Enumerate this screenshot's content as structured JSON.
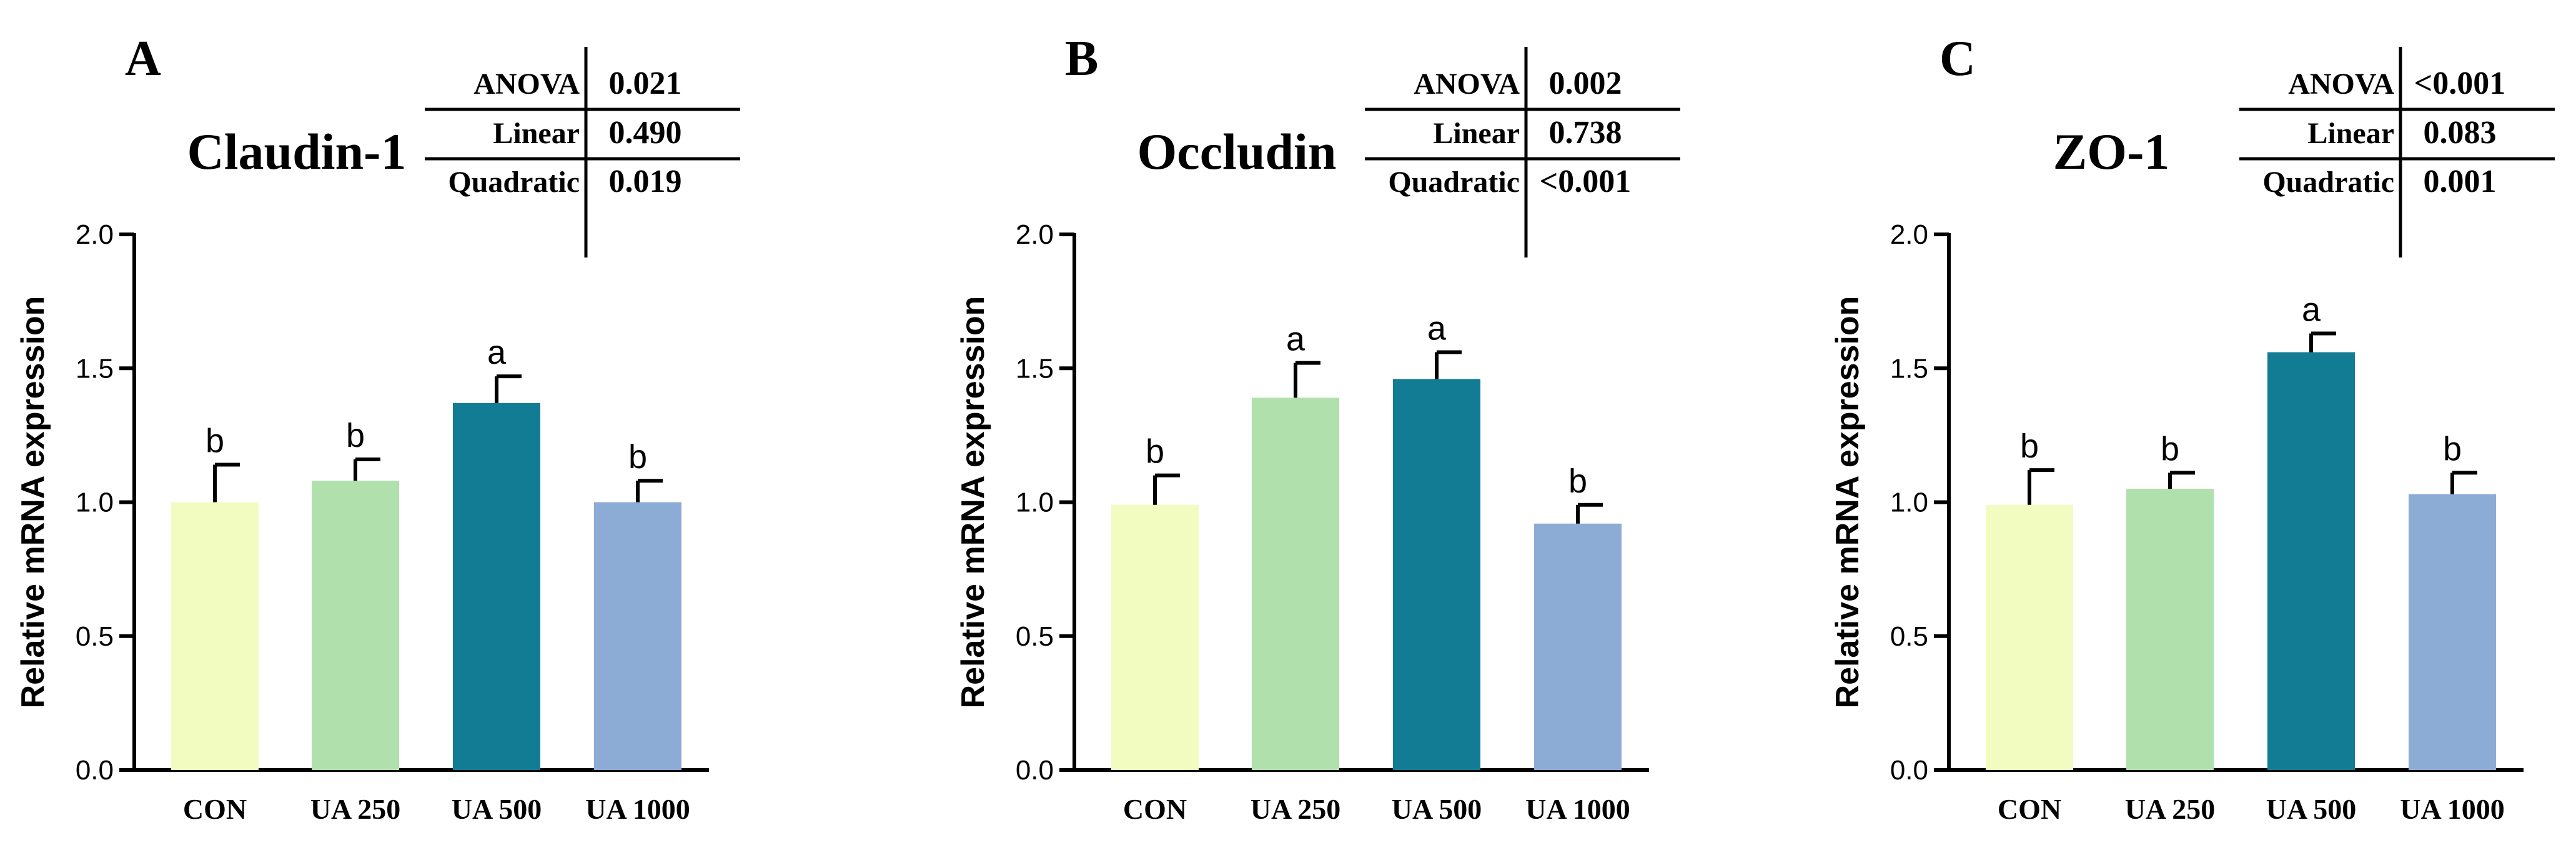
{
  "figure": {
    "categories": [
      "CON",
      "UA 250",
      "UA 500",
      "UA 1000"
    ],
    "colors": [
      "#f3fcc0",
      "#b0e0ac",
      "#127c95",
      "#8cacd5"
    ],
    "ylabel": "Relative mRNA expression",
    "ylim": [
      0,
      2.0
    ],
    "yticks": [
      "0.0",
      "0.5",
      "1.0",
      "1.5",
      "2.0"
    ],
    "stats_row_labels": [
      "ANOVA",
      "Linear",
      "Quadratic"
    ]
  },
  "chart_data": [
    {
      "type": "bar",
      "panel_letter": "A",
      "title": "Claudin-1",
      "categories": [
        "CON",
        "UA 250",
        "UA 500",
        "UA 1000"
      ],
      "values": [
        1.0,
        1.08,
        1.37,
        1.0
      ],
      "errors": [
        0.14,
        0.08,
        0.1,
        0.08
      ],
      "significance": [
        "b",
        "b",
        "a",
        "b"
      ],
      "xlabel": "",
      "ylabel": "Relative mRNA expression",
      "ylim": [
        0,
        2.0
      ],
      "yticks": [
        "0.0",
        "0.5",
        "1.0",
        "1.5",
        "2.0"
      ],
      "stats": {
        "ANOVA": "0.021",
        "Linear": "0.490",
        "Quadratic": "0.019"
      }
    },
    {
      "type": "bar",
      "panel_letter": "B",
      "title": "Occludin",
      "categories": [
        "CON",
        "UA 250",
        "UA 500",
        "UA 1000"
      ],
      "values": [
        0.99,
        1.39,
        1.46,
        0.92
      ],
      "errors": [
        0.11,
        0.13,
        0.1,
        0.07
      ],
      "significance": [
        "b",
        "a",
        "a",
        "b"
      ],
      "xlabel": "",
      "ylabel": "Relative mRNA expression",
      "ylim": [
        0,
        2.0
      ],
      "yticks": [
        "0.0",
        "0.5",
        "1.0",
        "1.5",
        "2.0"
      ],
      "stats": {
        "ANOVA": "0.002",
        "Linear": "0.738",
        "Quadratic": "<0.001"
      }
    },
    {
      "type": "bar",
      "panel_letter": "C",
      "title": "ZO-1",
      "categories": [
        "CON",
        "UA 250",
        "UA 500",
        "UA 1000"
      ],
      "values": [
        0.99,
        1.05,
        1.56,
        1.03
      ],
      "errors": [
        0.13,
        0.06,
        0.07,
        0.08
      ],
      "significance": [
        "b",
        "b",
        "a",
        "b"
      ],
      "xlabel": "",
      "ylabel": "Relative mRNA expression",
      "ylim": [
        0,
        2.0
      ],
      "yticks": [
        "0.0",
        "0.5",
        "1.0",
        "1.5",
        "2.0"
      ],
      "stats": {
        "ANOVA": "<0.001",
        "Linear": "0.083",
        "Quadratic": "0.001"
      }
    }
  ]
}
